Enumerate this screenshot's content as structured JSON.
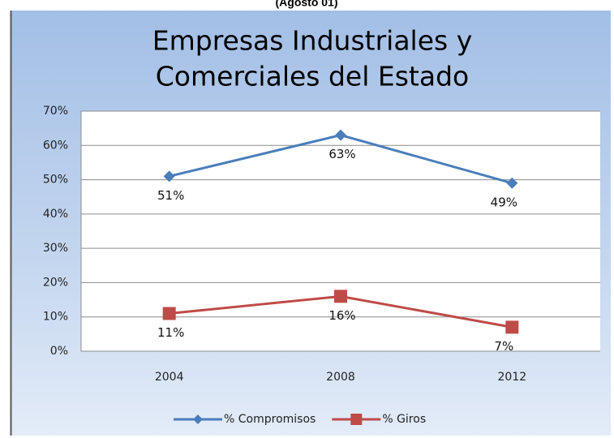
{
  "header": {
    "text": "(Agosto 01)"
  },
  "chart_data": {
    "type": "line",
    "title": [
      "Empresas Industriales y",
      "Comerciales del Estado"
    ],
    "categories": [
      "2004",
      "2008",
      "2012"
    ],
    "series": [
      {
        "name": "% Compromisos",
        "color": "#4a7ebb",
        "marker": "diamond",
        "values": [
          51,
          63,
          49
        ],
        "value_labels": [
          "51%",
          "63%",
          "49%"
        ]
      },
      {
        "name": "% Giros",
        "color": "#be4b48",
        "marker": "square",
        "values": [
          11,
          16,
          7
        ],
        "value_labels": [
          "11%",
          "16%",
          "7%"
        ]
      }
    ],
    "ylim": [
      0,
      70
    ],
    "yticks": [
      {
        "value": 0,
        "label": "0%"
      },
      {
        "value": 10,
        "label": "10%"
      },
      {
        "value": 20,
        "label": "20%"
      },
      {
        "value": 30,
        "label": "30%"
      },
      {
        "value": 40,
        "label": "40%"
      },
      {
        "value": 50,
        "label": "50%"
      },
      {
        "value": 60,
        "label": "60%"
      },
      {
        "value": 70,
        "label": "70%"
      }
    ],
    "grid": true,
    "legend": "bottom"
  }
}
